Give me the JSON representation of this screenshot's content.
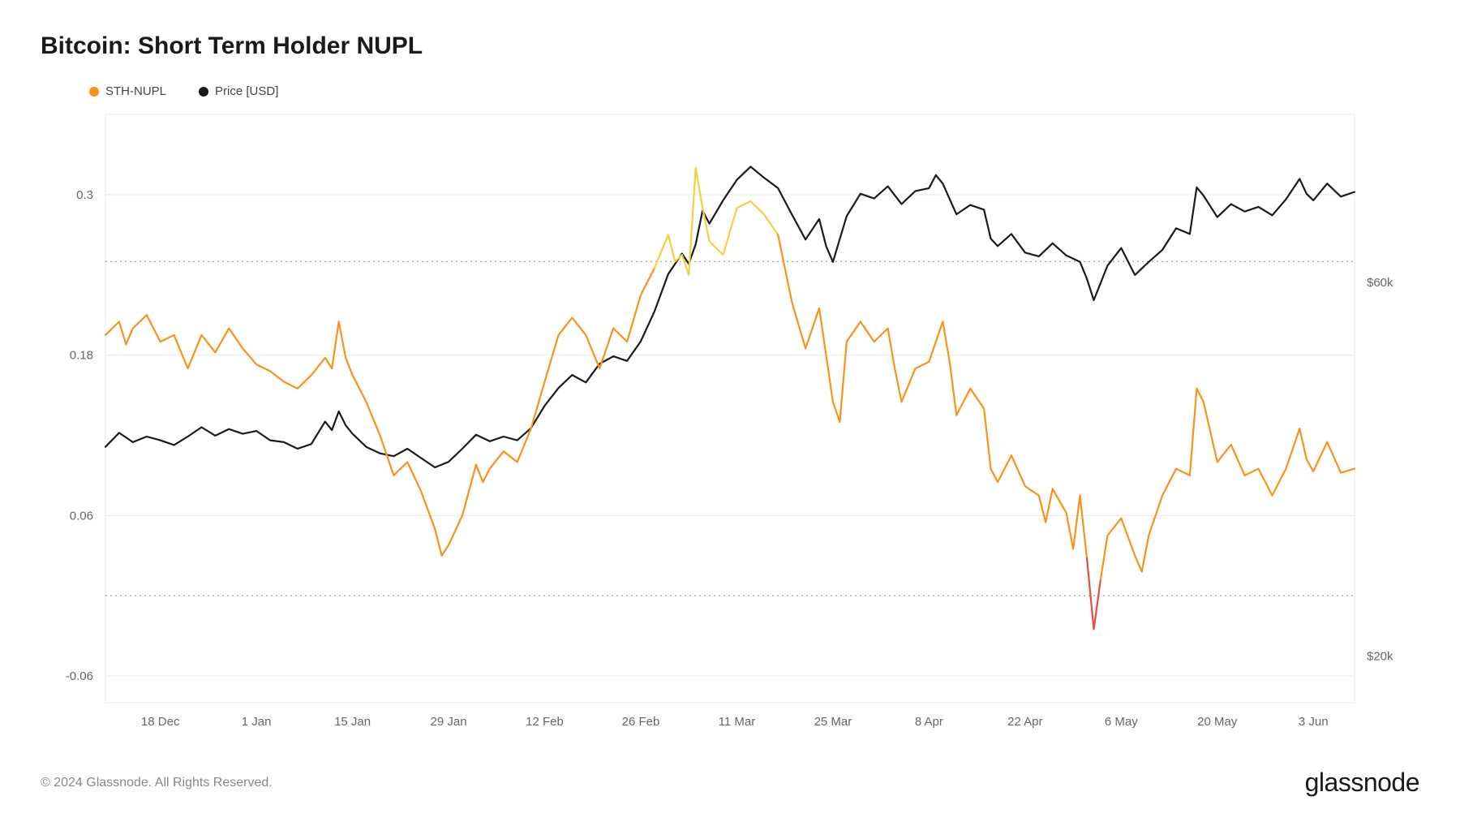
{
  "title": "Bitcoin: Short Term Holder NUPL",
  "legend": [
    {
      "label": "STH-NUPL",
      "color": "#f7931a"
    },
    {
      "label": "Price [USD]",
      "color": "#1a1a1a"
    }
  ],
  "copyright": "© 2024 Glassnode. All Rights Reserved.",
  "brand": "glassnode",
  "chart": {
    "type": "line-dual-axis",
    "background_color": "#ffffff",
    "grid_color": "#e8e8e8",
    "dotted_ref_color": "#888888",
    "axis_font_size": 15,
    "axis_text_color": "#666666",
    "line_width_nupl": 2.2,
    "line_width_price": 2.2,
    "left_axis": {
      "min": -0.08,
      "max": 0.36,
      "ticks": [
        -0.06,
        0.06,
        0.18,
        0.3
      ],
      "tick_labels": [
        "-0.06",
        "0.06",
        "0.18",
        "0.3"
      ],
      "dotted_refs": [
        0.0,
        0.25
      ]
    },
    "right_axis": {
      "min": 15000,
      "max": 78000,
      "ticks": [
        20000,
        60000
      ],
      "tick_labels": [
        "$20k",
        "$60k"
      ]
    },
    "x_axis": {
      "min": 0,
      "max": 182,
      "ticks": [
        8,
        22,
        36,
        50,
        64,
        78,
        92,
        106,
        120,
        134,
        148,
        162,
        176
      ],
      "tick_labels": [
        "18 Dec",
        "1 Jan",
        "15 Jan",
        "29 Jan",
        "12 Feb",
        "26 Feb",
        "11 Mar",
        "25 Mar",
        "8 Apr",
        "22 Apr",
        "6 May",
        "20 May",
        "3 Jun"
      ]
    },
    "nupl_segments": [
      {
        "color": "#f7931a",
        "points": [
          [
            0,
            0.195
          ],
          [
            2,
            0.205
          ],
          [
            3,
            0.188
          ],
          [
            4,
            0.2
          ],
          [
            6,
            0.21
          ],
          [
            8,
            0.19
          ],
          [
            10,
            0.195
          ],
          [
            12,
            0.17
          ],
          [
            14,
            0.195
          ],
          [
            16,
            0.182
          ],
          [
            18,
            0.2
          ],
          [
            20,
            0.185
          ],
          [
            22,
            0.173
          ],
          [
            24,
            0.168
          ],
          [
            26,
            0.16
          ],
          [
            28,
            0.155
          ],
          [
            30,
            0.165
          ],
          [
            32,
            0.178
          ],
          [
            33,
            0.17
          ],
          [
            34,
            0.205
          ],
          [
            35,
            0.178
          ],
          [
            36,
            0.165
          ],
          [
            38,
            0.145
          ],
          [
            40,
            0.12
          ],
          [
            42,
            0.09
          ],
          [
            44,
            0.1
          ],
          [
            46,
            0.078
          ],
          [
            48,
            0.05
          ],
          [
            49,
            0.03
          ],
          [
            50,
            0.038
          ],
          [
            52,
            0.06
          ],
          [
            54,
            0.098
          ],
          [
            55,
            0.085
          ],
          [
            56,
            0.095
          ],
          [
            58,
            0.108
          ],
          [
            60,
            0.1
          ],
          [
            62,
            0.125
          ],
          [
            64,
            0.16
          ],
          [
            66,
            0.195
          ],
          [
            68,
            0.208
          ],
          [
            70,
            0.195
          ],
          [
            72,
            0.17
          ],
          [
            74,
            0.2
          ],
          [
            76,
            0.19
          ],
          [
            78,
            0.225
          ],
          [
            80,
            0.245
          ]
        ]
      },
      {
        "color": "#f4d03f",
        "points": [
          [
            80,
            0.245
          ],
          [
            82,
            0.27
          ],
          [
            83,
            0.25
          ],
          [
            84,
            0.255
          ],
          [
            85,
            0.24
          ],
          [
            86,
            0.32
          ],
          [
            87,
            0.29
          ],
          [
            88,
            0.265
          ],
          [
            90,
            0.255
          ],
          [
            92,
            0.29
          ],
          [
            94,
            0.295
          ],
          [
            96,
            0.285
          ],
          [
            98,
            0.27
          ]
        ]
      },
      {
        "color": "#f7931a",
        "points": [
          [
            98,
            0.27
          ],
          [
            100,
            0.22
          ],
          [
            102,
            0.185
          ],
          [
            104,
            0.215
          ],
          [
            105,
            0.18
          ],
          [
            106,
            0.145
          ],
          [
            107,
            0.13
          ],
          [
            108,
            0.19
          ],
          [
            110,
            0.205
          ],
          [
            112,
            0.19
          ],
          [
            114,
            0.2
          ],
          [
            115,
            0.17
          ],
          [
            116,
            0.145
          ],
          [
            118,
            0.17
          ],
          [
            120,
            0.175
          ],
          [
            121,
            0.19
          ],
          [
            122,
            0.205
          ],
          [
            123,
            0.175
          ],
          [
            124,
            0.135
          ],
          [
            126,
            0.155
          ],
          [
            128,
            0.14
          ],
          [
            129,
            0.095
          ],
          [
            130,
            0.085
          ],
          [
            132,
            0.105
          ],
          [
            134,
            0.082
          ],
          [
            136,
            0.075
          ],
          [
            137,
            0.055
          ],
          [
            138,
            0.08
          ],
          [
            140,
            0.062
          ],
          [
            141,
            0.035
          ],
          [
            142,
            0.075
          ],
          [
            143,
            0.028
          ]
        ]
      },
      {
        "color": "#e74c3c",
        "points": [
          [
            143,
            0.028
          ],
          [
            144,
            -0.025
          ],
          [
            145,
            0.012
          ]
        ]
      },
      {
        "color": "#f7931a",
        "points": [
          [
            145,
            0.012
          ],
          [
            146,
            0.045
          ],
          [
            148,
            0.058
          ],
          [
            150,
            0.03
          ],
          [
            151,
            0.018
          ],
          [
            152,
            0.045
          ],
          [
            154,
            0.075
          ],
          [
            156,
            0.095
          ],
          [
            158,
            0.09
          ],
          [
            159,
            0.155
          ],
          [
            160,
            0.145
          ],
          [
            162,
            0.1
          ],
          [
            164,
            0.113
          ],
          [
            166,
            0.09
          ],
          [
            168,
            0.095
          ],
          [
            170,
            0.075
          ],
          [
            172,
            0.095
          ],
          [
            174,
            0.125
          ],
          [
            175,
            0.102
          ],
          [
            176,
            0.093
          ],
          [
            178,
            0.115
          ],
          [
            180,
            0.092
          ],
          [
            182,
            0.095
          ]
        ]
      }
    ],
    "price_series": {
      "color": "#1a1a1a",
      "points": [
        [
          0,
          42400
        ],
        [
          2,
          43900
        ],
        [
          4,
          42900
        ],
        [
          6,
          43500
        ],
        [
          8,
          43100
        ],
        [
          10,
          42600
        ],
        [
          12,
          43500
        ],
        [
          14,
          44500
        ],
        [
          16,
          43600
        ],
        [
          18,
          44300
        ],
        [
          20,
          43800
        ],
        [
          22,
          44100
        ],
        [
          24,
          43100
        ],
        [
          26,
          42900
        ],
        [
          28,
          42200
        ],
        [
          30,
          42700
        ],
        [
          32,
          45100
        ],
        [
          33,
          44200
        ],
        [
          34,
          46200
        ],
        [
          35,
          44700
        ],
        [
          36,
          43800
        ],
        [
          38,
          42400
        ],
        [
          40,
          41700
        ],
        [
          42,
          41400
        ],
        [
          44,
          42200
        ],
        [
          46,
          41200
        ],
        [
          48,
          40200
        ],
        [
          50,
          40800
        ],
        [
          52,
          42200
        ],
        [
          54,
          43700
        ],
        [
          56,
          43000
        ],
        [
          58,
          43500
        ],
        [
          60,
          43100
        ],
        [
          62,
          44400
        ],
        [
          64,
          46800
        ],
        [
          66,
          48700
        ],
        [
          68,
          50100
        ],
        [
          70,
          49300
        ],
        [
          72,
          51300
        ],
        [
          74,
          52100
        ],
        [
          76,
          51600
        ],
        [
          78,
          53700
        ],
        [
          80,
          56900
        ],
        [
          82,
          60900
        ],
        [
          84,
          63100
        ],
        [
          85,
          62000
        ],
        [
          86,
          64100
        ],
        [
          87,
          67700
        ],
        [
          88,
          66300
        ],
        [
          90,
          68800
        ],
        [
          92,
          71000
        ],
        [
          94,
          72400
        ],
        [
          96,
          71200
        ],
        [
          98,
          70100
        ],
        [
          100,
          67300
        ],
        [
          102,
          64600
        ],
        [
          104,
          66800
        ],
        [
          105,
          63900
        ],
        [
          106,
          62200
        ],
        [
          108,
          67100
        ],
        [
          110,
          69500
        ],
        [
          112,
          69000
        ],
        [
          114,
          70300
        ],
        [
          116,
          68400
        ],
        [
          118,
          69800
        ],
        [
          120,
          70100
        ],
        [
          121,
          71500
        ],
        [
          122,
          70600
        ],
        [
          124,
          67300
        ],
        [
          126,
          68300
        ],
        [
          128,
          67800
        ],
        [
          129,
          64700
        ],
        [
          130,
          63900
        ],
        [
          132,
          65200
        ],
        [
          134,
          63200
        ],
        [
          136,
          62800
        ],
        [
          138,
          64200
        ],
        [
          140,
          62900
        ],
        [
          142,
          62200
        ],
        [
          143,
          60400
        ],
        [
          144,
          58100
        ],
        [
          146,
          61800
        ],
        [
          148,
          63700
        ],
        [
          150,
          60800
        ],
        [
          152,
          62200
        ],
        [
          154,
          63500
        ],
        [
          156,
          65800
        ],
        [
          158,
          65200
        ],
        [
          159,
          70200
        ],
        [
          160,
          69300
        ],
        [
          162,
          67000
        ],
        [
          164,
          68400
        ],
        [
          166,
          67600
        ],
        [
          168,
          68100
        ],
        [
          170,
          67200
        ],
        [
          172,
          68900
        ],
        [
          174,
          71100
        ],
        [
          175,
          69500
        ],
        [
          176,
          68800
        ],
        [
          178,
          70600
        ],
        [
          180,
          69200
        ],
        [
          182,
          69700
        ]
      ]
    }
  }
}
